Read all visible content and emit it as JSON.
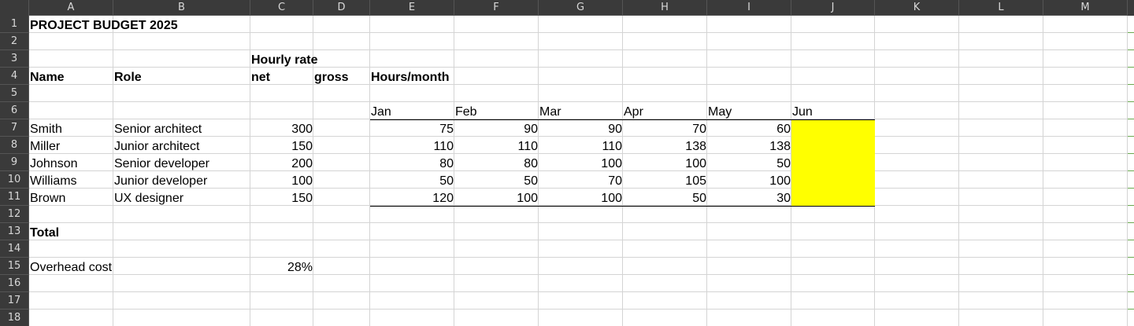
{
  "columns": [
    "A",
    "B",
    "C",
    "D",
    "E",
    "F",
    "G",
    "H",
    "I",
    "J",
    "K",
    "L",
    "M"
  ],
  "rows": [
    "1",
    "2",
    "3",
    "4",
    "5",
    "6",
    "7",
    "8",
    "9",
    "10",
    "11",
    "12",
    "13",
    "14",
    "15",
    "16",
    "17",
    "18"
  ],
  "title": "PROJECT BUDGET 2025",
  "headers": {
    "hourly_rate": "Hourly rate",
    "name": "Name",
    "role": "Role",
    "net": "net",
    "gross": "gross",
    "hours_month": "Hours/month"
  },
  "months": [
    "Jan",
    "Feb",
    "Mar",
    "Apr",
    "May",
    "Jun"
  ],
  "people": [
    {
      "name": "Smith",
      "role": "Senior architect",
      "rate": "300",
      "hours": [
        "75",
        "90",
        "90",
        "70",
        "60"
      ]
    },
    {
      "name": "Miller",
      "role": "Junior architect",
      "rate": "150",
      "hours": [
        "110",
        "110",
        "110",
        "138",
        "138"
      ]
    },
    {
      "name": "Johnson",
      "role": "Senior developer",
      "rate": "200",
      "hours": [
        "80",
        "80",
        "100",
        "100",
        "50"
      ]
    },
    {
      "name": "Williams",
      "role": "Junior developer",
      "rate": "100",
      "hours": [
        "50",
        "50",
        "70",
        "105",
        "100"
      ]
    },
    {
      "name": "Brown",
      "role": "UX designer",
      "rate": "150",
      "hours": [
        "120",
        "100",
        "100",
        "50",
        "30"
      ]
    }
  ],
  "total_label": "Total",
  "overhead": {
    "label": "Overhead cost",
    "value": "28%"
  },
  "colors": {
    "highlight": "#ffff00",
    "header_bg": "#3a3a3a",
    "grid": "#d4d4d4"
  }
}
